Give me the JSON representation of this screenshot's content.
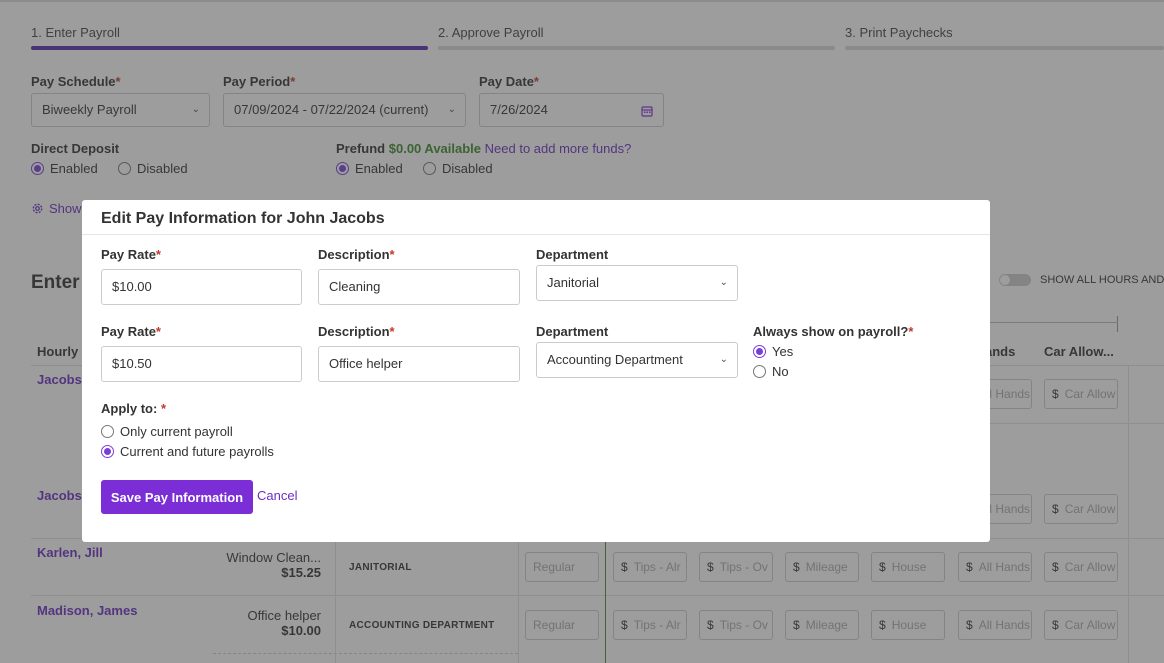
{
  "steps": [
    {
      "label": "1. Enter Payroll"
    },
    {
      "label": "2. Approve Payroll"
    },
    {
      "label": "3. Print Paychecks"
    }
  ],
  "filters": {
    "pay_schedule": {
      "label": "Pay Schedule",
      "value": "Biweekly Payroll"
    },
    "pay_period": {
      "label": "Pay Period",
      "value": "07/09/2024 - 07/22/2024 (current)"
    },
    "pay_date": {
      "label": "Pay Date",
      "value": "7/26/2024"
    }
  },
  "direct_deposit": {
    "label": "Direct Deposit",
    "enabled": "Enabled",
    "disabled": "Disabled",
    "selected": "Enabled"
  },
  "prefund": {
    "label": "Prefund",
    "amount": "$0.00 Available",
    "link": "Need to add more funds?",
    "enabled": "Enabled",
    "disabled": "Disabled",
    "selected": "Enabled"
  },
  "background": {
    "show_link": "Show",
    "enter_heading": "Enter",
    "hourly_heading": "Hourly",
    "toggle_label": "SHOW ALL HOURS AND",
    "col_hands": "ands",
    "col_car": "Car Allow...",
    "rows": [
      {
        "name": "Jacobs"
      },
      {
        "name": "Jacobs"
      },
      {
        "name": "Karlen, Jill",
        "desc": "Window Clean...",
        "rate": "$15.25",
        "dept": "JANITORIAL"
      },
      {
        "name": "Madison, James",
        "desc": "Office helper",
        "rate": "$10.00",
        "dept": "ACCOUNTING DEPARTMENT"
      }
    ],
    "placeholders": {
      "regular": "Regular",
      "tips_a": "Tips - Alr",
      "tips_o": "Tips - Ov",
      "mileage": "Mileage",
      "house": "House",
      "all_hands": "All Hands",
      "all_hands_short": "All Hands",
      "car_allow": "Car Allow",
      "dollar": "$"
    }
  },
  "modal": {
    "title": "Edit Pay Information for John Jacobs",
    "pay_rate_label": "Pay Rate",
    "description_label": "Description",
    "department_label": "Department",
    "always_show_label": "Always show on payroll?",
    "rows": [
      {
        "pay_rate": "$10.00",
        "description": "Cleaning",
        "department": "Janitorial"
      },
      {
        "pay_rate": "$10.50",
        "description": "Office helper",
        "department": "Accounting Department"
      }
    ],
    "always_show": {
      "yes": "Yes",
      "no": "No",
      "selected": "Yes"
    },
    "apply_to": {
      "label": "Apply to:",
      "options": [
        "Only current payroll",
        "Current and future payrolls"
      ],
      "selected": "Current and future payrolls"
    },
    "save_label": "Save Pay Information",
    "cancel_label": "Cancel"
  },
  "colors": {
    "accent": "#7b2ed6",
    "active_step": "#5b2bb5",
    "green": "#3c8a2b"
  }
}
